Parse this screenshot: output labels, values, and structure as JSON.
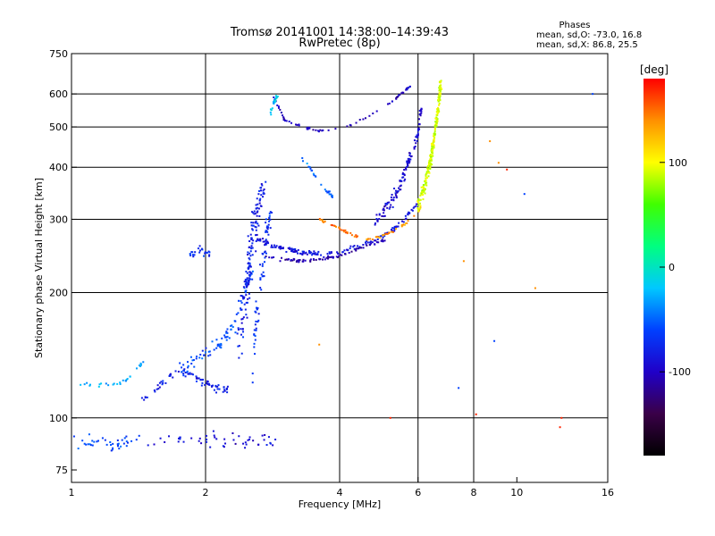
{
  "chart_data": {
    "type": "scatter",
    "title": "Tromsø 20141001 14:38:00–14:39:43",
    "subtitle": "RwPretec (8p)",
    "xlabel": "Frequency [MHz]",
    "ylabel": "Stationary phase Virtual Height [km]",
    "x_scale": "log",
    "y_scale": "log",
    "xlim": [
      1,
      16
    ],
    "ylim": [
      70,
      750
    ],
    "x_ticks": [
      1,
      2,
      4,
      6,
      8,
      10,
      16
    ],
    "x_tick_labels": [
      "1",
      "2",
      "4",
      "6",
      "8",
      "10",
      "16"
    ],
    "x_grid": [
      2,
      4,
      6,
      8
    ],
    "y_ticks": [
      75,
      100,
      200,
      300,
      400,
      500,
      600,
      750
    ],
    "y_tick_labels": [
      "75",
      "100",
      "200",
      "300",
      "400",
      "500",
      "600",
      "750"
    ],
    "y_grid": [
      100,
      200,
      300,
      400,
      500,
      600
    ],
    "grid": true,
    "info_panel": {
      "heading": "Phases",
      "lines": [
        "mean, sd,O: -73.0, 16.8",
        "mean, sd,X:  86.8, 25.5"
      ]
    },
    "colorbar": {
      "label": "[deg]",
      "range": [
        -180,
        180
      ],
      "ticks": [
        100,
        0,
        -100
      ],
      "tick_labels": [
        "100",
        "0",
        "-100"
      ],
      "colormap": [
        "#000000",
        "#3a0048",
        "#2000c8",
        "#0040ff",
        "#00c8ff",
        "#00ff80",
        "#40ff00",
        "#ffff00",
        "#ff9000",
        "#ff0000"
      ]
    },
    "series": [
      {
        "segments": [
          {
            "x": [
              1.02,
              1.1,
              1.2,
              1.3,
              1.4
            ],
            "y": [
              88,
              88,
              86,
              87,
              88
            ],
            "phase": -60,
            "n": 40,
            "sx": 0.05,
            "sy": 5
          },
          {
            "x": [
              1.5,
              1.7,
              1.9,
              2.1,
              2.3,
              2.6,
              2.9
            ],
            "y": [
              88,
              89,
              87,
              90,
              88,
              88,
              88
            ],
            "phase": -90,
            "n": 50,
            "sx": 0.05,
            "sy": 5
          },
          {
            "x": [
              1.05,
              1.15,
              1.25,
              1.33,
              1.4,
              1.45
            ],
            "y": [
              121,
              120,
              120,
              123,
              130,
              136
            ],
            "phase": -30,
            "n": 30,
            "sx": 0.01,
            "sy": 2
          },
          {
            "x": [
              1.45,
              1.55,
              1.65,
              1.75,
              1.85,
              1.95,
              2.05,
              2.15,
              2.25
            ],
            "y": [
              112,
              117,
              125,
              130,
              127,
              122,
              120,
              118,
              118
            ],
            "phase": -80,
            "n": 80,
            "sx": 0.02,
            "sy": 4
          },
          {
            "x": [
              1.75,
              1.85,
              1.95,
              2.05,
              2.15,
              2.25,
              2.35,
              2.45,
              2.55
            ],
            "y": [
              130,
              135,
              140,
              145,
              150,
              160,
              175,
              200,
              230
            ],
            "phase": -60,
            "n": 90,
            "sx": 0.04,
            "sy": 10
          },
          {
            "x": [
              2.38,
              2.45,
              2.5,
              2.55,
              2.6,
              2.7
            ],
            "y": [
              150,
              190,
              230,
              270,
              310,
              360
            ],
            "phase": -80,
            "n": 150,
            "sx": 0.07,
            "sy": 20
          },
          {
            "x": [
              2.55,
              2.6,
              2.65,
              2.7,
              2.75,
              2.8
            ],
            "y": [
              120,
              160,
              200,
              240,
              280,
              310
            ],
            "phase": -70,
            "n": 70,
            "sx": 0.05,
            "sy": 15
          },
          {
            "x": [
              1.85,
              1.9,
              1.95,
              2.0,
              2.05
            ],
            "y": [
              245,
              250,
              255,
              250,
              245
            ],
            "phase": -70,
            "n": 25,
            "sx": 0.04,
            "sy": 6
          },
          {
            "x": [
              2.6,
              2.8,
              3.0,
              3.3,
              3.6,
              4.0,
              4.4,
              4.8,
              5.2,
              5.6,
              6.0
            ],
            "y": [
              270,
              260,
              255,
              250,
              248,
              250,
              258,
              268,
              280,
              300,
              330
            ],
            "phase": -85,
            "n": 160,
            "sx": 0.03,
            "sy": 5
          },
          {
            "x": [
              2.7,
              3.0,
              3.3,
              3.6,
              4.0,
              4.4,
              4.8,
              5.2
            ],
            "y": [
              245,
              240,
              238,
              240,
              245,
              255,
              262,
              270
            ],
            "phase": -110,
            "n": 80,
            "sx": 0.02,
            "sy": 3
          },
          {
            "x": [
              4.8,
              5.1,
              5.4,
              5.6,
              5.8,
              6.0,
              6.1
            ],
            "y": [
              300,
              320,
              350,
              390,
              430,
              480,
              550
            ],
            "phase": -95,
            "n": 120,
            "sx": 0.04,
            "sy": 20
          },
          {
            "x": [
              3.6,
              3.8,
              4.0,
              4.2,
              4.4
            ],
            "y": [
              300,
              292,
              285,
              278,
              272
            ],
            "phase": 150,
            "n": 30,
            "sx": 0.01,
            "sy": 3
          },
          {
            "x": [
              4.6,
              4.9,
              5.2,
              5.5,
              5.8,
              6.1
            ],
            "y": [
              268,
              272,
              278,
              288,
              300,
              320
            ],
            "phase": 140,
            "n": 35,
            "sx": 0.01,
            "sy": 3
          },
          {
            "x": [
              6.0,
              6.2,
              6.4,
              6.5,
              6.6,
              6.7,
              6.75
            ],
            "y": [
              320,
              360,
              410,
              460,
              520,
              580,
              640
            ],
            "phase": 90,
            "n": 240,
            "sx": 0.06,
            "sy": 25
          },
          {
            "x": [
              2.85,
              3.0,
              3.3,
              3.6,
              4.0,
              4.5,
              5.0,
              5.4,
              5.8
            ],
            "y": [
              590,
              520,
              500,
              488,
              495,
              520,
              555,
              590,
              630
            ],
            "phase": -100,
            "n": 70,
            "sx": 0.01,
            "sy": 4
          },
          {
            "x": [
              2.8,
              2.85,
              2.9
            ],
            "y": [
              540,
              570,
              600
            ],
            "phase": -20,
            "n": 25,
            "sx": 0.02,
            "sy": 15
          },
          {
            "x": [
              3.3,
              3.5,
              3.7,
              3.9
            ],
            "y": [
              420,
              385,
              355,
              335
            ],
            "phase": -50,
            "n": 25,
            "sx": 0.01,
            "sy": 5
          },
          {
            "x": [
              3.6,
              5.2,
              7.4,
              8.7,
              9.5,
              8.9,
              11,
              12.6,
              10.4,
              7.6,
              12.5,
              14.8,
              9.1,
              8.1
            ],
            "y": [
              150,
              100,
              118,
              462,
              395,
              153,
              205,
              100,
              345,
              238,
              95,
              600,
              410,
              102
            ],
            "phase": -40,
            "n": 14,
            "sx": 0,
            "sy": 0
          }
        ]
      }
    ]
  }
}
